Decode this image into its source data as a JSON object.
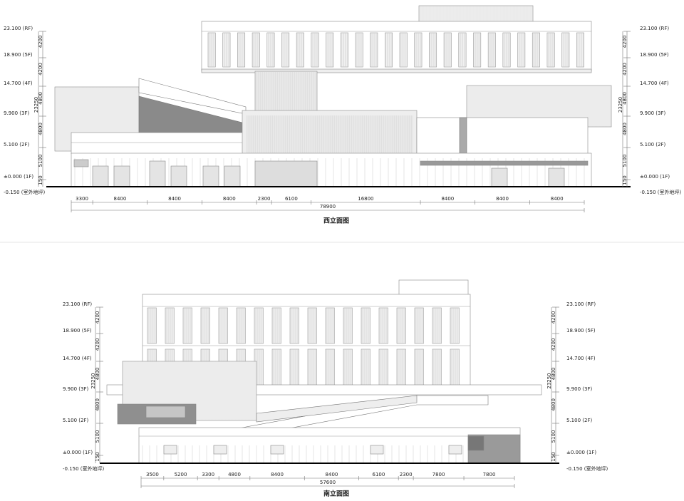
{
  "elevations": [
    {
      "title": "西立面图",
      "levels": [
        "23.100 (RF)",
        "18.900 (5F)",
        "14.700 (4F)",
        "9.900 (3F)",
        "5.100 (2F)",
        "±0.000 (1F)",
        "-0.150 (室外地坪)"
      ],
      "vertical_dims": [
        "4200",
        "4200",
        "4800",
        "4800",
        "5100",
        "150"
      ],
      "total_height": "23250",
      "horizontal_dims": [
        "3300",
        "8400",
        "8400",
        "8400",
        "2300",
        "6100",
        "16800",
        "8400",
        "8400",
        "8400"
      ],
      "total_width": "78900"
    },
    {
      "title": "南立面图",
      "levels": [
        "23.100 (RF)",
        "18.900 (5F)",
        "14.700 (4F)",
        "9.900 (3F)",
        "5.100 (2F)",
        "±0.000 (1F)",
        "-0.150 (室外地坪)"
      ],
      "vertical_dims": [
        "4200",
        "4200",
        "4800",
        "4800",
        "5100",
        "150"
      ],
      "total_height": "23250",
      "horizontal_dims": [
        "3500",
        "5200",
        "3300",
        "4800",
        "8400",
        "8400",
        "6100",
        "2300",
        "7800",
        "7800"
      ],
      "total_width": "57600"
    }
  ]
}
